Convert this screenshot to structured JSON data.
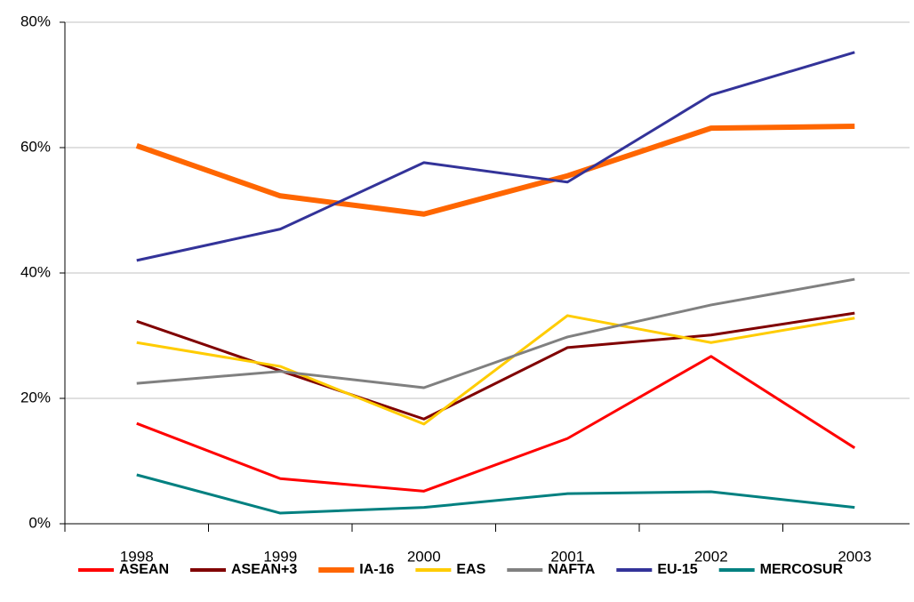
{
  "chart_data": {
    "type": "line",
    "categories": [
      "1998",
      "1999",
      "2000",
      "2001",
      "2002",
      "2003"
    ],
    "series": [
      {
        "name": "ASEAN",
        "color": "#ff0000",
        "values": [
          16.0,
          7.2,
          5.2,
          13.6,
          26.7,
          12.1
        ]
      },
      {
        "name": "ASEAN+3",
        "color": "#800000",
        "values": [
          32.3,
          24.4,
          16.7,
          28.1,
          30.1,
          33.6
        ]
      },
      {
        "name": "IA-16",
        "color": "#ff6600",
        "emphasis": true,
        "values": [
          60.3,
          52.3,
          49.4,
          55.5,
          63.1,
          63.4
        ]
      },
      {
        "name": "EAS",
        "color": "#ffcc00",
        "values": [
          28.9,
          25.1,
          15.9,
          33.2,
          28.9,
          32.8
        ]
      },
      {
        "name": "NAFTA",
        "color": "#808080",
        "values": [
          22.4,
          24.3,
          21.7,
          29.8,
          34.9,
          39.0
        ]
      },
      {
        "name": "EU-15",
        "color": "#333399",
        "values": [
          42.0,
          47.0,
          57.6,
          54.5,
          68.4,
          75.2
        ]
      },
      {
        "name": "MERCOSUR",
        "color": "#008080",
        "values": [
          7.8,
          1.7,
          2.6,
          4.8,
          5.1,
          2.6
        ]
      }
    ],
    "ylim": [
      0,
      80
    ],
    "yticks": [
      {
        "value": 0,
        "label": "0%"
      },
      {
        "value": 20,
        "label": "20%"
      },
      {
        "value": 40,
        "label": "40%"
      },
      {
        "value": 60,
        "label": "60%"
      },
      {
        "value": 80,
        "label": "80%"
      }
    ],
    "grid": true,
    "legend": "bottom"
  }
}
